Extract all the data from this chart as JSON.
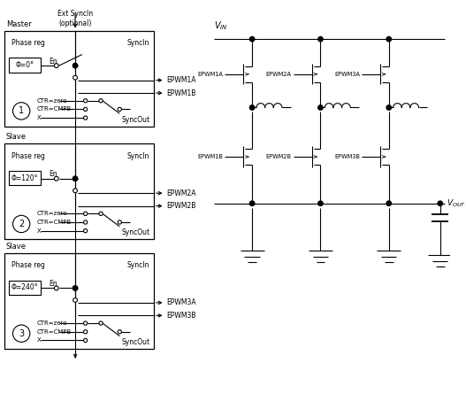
{
  "bg_color": "#ffffff",
  "line_color": "#000000",
  "fig_width": 5.27,
  "fig_height": 4.45,
  "dpi": 100,
  "ext_sync_label": "Ext SyncIn\n(optional)",
  "blocks": [
    {
      "label": "Master",
      "phase": "Φ=0°",
      "num": "1",
      "epwm_a": "EPWM1A",
      "epwm_b": "EPWM1B"
    },
    {
      "label": "Slave",
      "phase": "Φ=120°",
      "num": "2",
      "epwm_a": "EPWM2A",
      "epwm_b": "EPWM2B"
    },
    {
      "label": "Slave",
      "phase": "Φ=240°",
      "num": "3",
      "epwm_a": "EPWM3A",
      "epwm_b": "EPWM3B"
    }
  ],
  "circuit_labels_top": [
    "EPWM1A",
    "EPWM2A",
    "EPWM3A"
  ],
  "circuit_labels_bot": [
    "EPWM1B",
    "EPWM2B",
    "EPWM3B"
  ],
  "vin_label": "$V_{IN}$",
  "vout_label": "$V_{OUT}$"
}
